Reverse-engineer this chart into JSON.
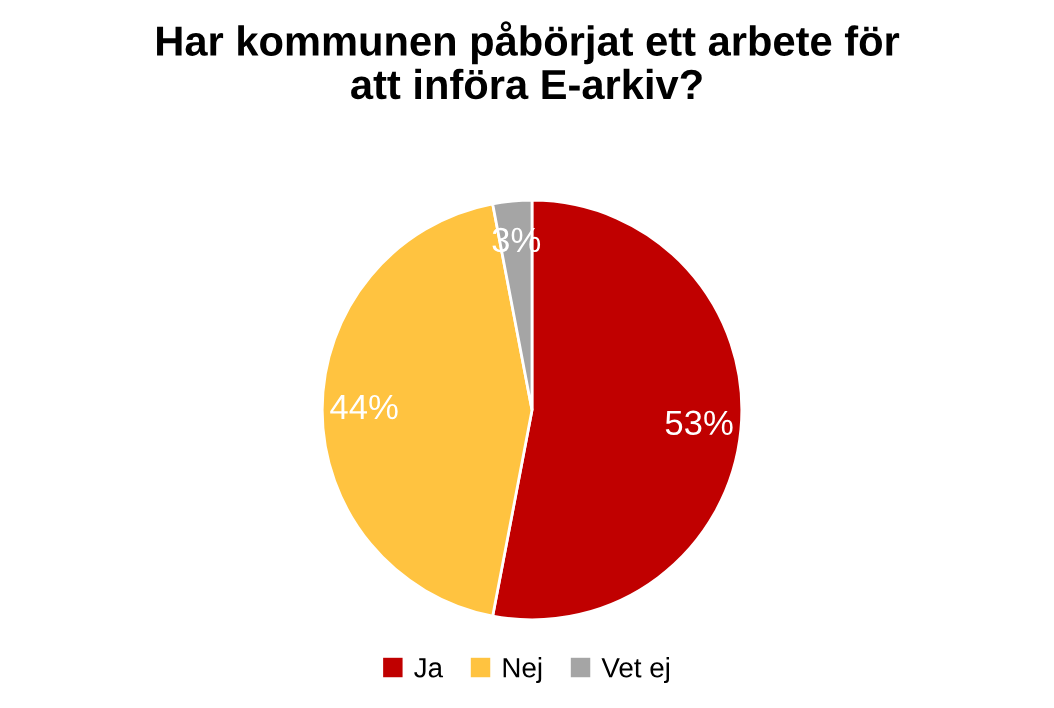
{
  "chart_data": {
    "type": "pie",
    "title": "Har kommunen påbörjat ett arbete för\natt införa E-arkiv?",
    "categories": [
      "Ja",
      "Nej",
      "Vet ej"
    ],
    "values": [
      53,
      44,
      3
    ],
    "colors": [
      "#c00000",
      "#ffc340",
      "#a5a5a5"
    ],
    "value_labels": [
      "53%",
      "44%",
      "3%"
    ],
    "legend": "bottom"
  }
}
